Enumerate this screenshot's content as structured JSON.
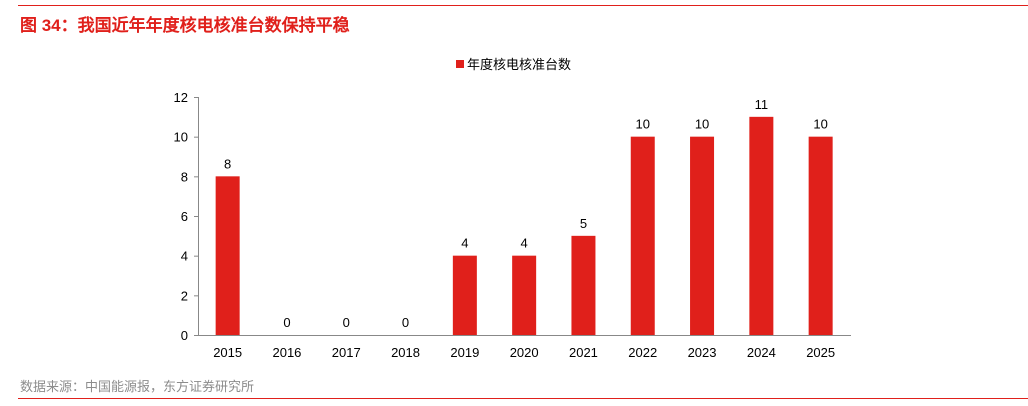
{
  "title": "图 34：我国近年年度核电核准台数保持平稳",
  "source": "数据来源：中国能源报，东方证券研究所",
  "colors": {
    "accent": "#e0201b",
    "bar": "#e0201b"
  },
  "chart_data": {
    "type": "bar",
    "title": "",
    "categories": [
      "2015",
      "2016",
      "2017",
      "2018",
      "2019",
      "2020",
      "2021",
      "2022",
      "2023",
      "2024",
      "2025"
    ],
    "series": [
      {
        "name": "年度核电核准台数",
        "values": [
          8,
          0,
          0,
          0,
          4,
          4,
          5,
          10,
          10,
          11,
          10
        ]
      }
    ],
    "yticks": [
      0,
      2,
      4,
      6,
      8,
      10,
      12
    ],
    "ylim": [
      0,
      12
    ],
    "xlabel": "",
    "ylabel": "",
    "grid": false,
    "legend": "top-center",
    "data_labels": true
  }
}
